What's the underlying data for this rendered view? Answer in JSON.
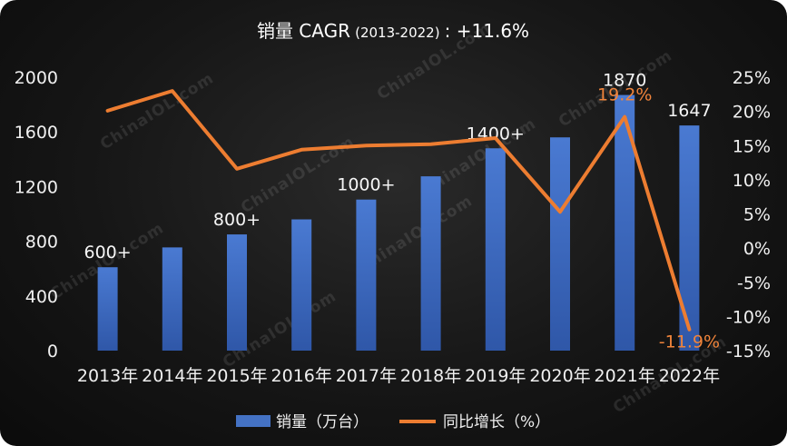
{
  "chart_data": {
    "type": "bar",
    "title": "销量 CAGR",
    "title_period": "(2013-2022)",
    "title_value": ": +11.6%",
    "categories": [
      "2013年",
      "2014年",
      "2015年",
      "2016年",
      "2017年",
      "2018年",
      "2019年",
      "2020年",
      "2021年",
      "2022年"
    ],
    "series": [
      {
        "name": "销量（万台）",
        "kind": "bar",
        "axis": "left",
        "color": "#4472c4",
        "values": [
          610,
          755,
          850,
          960,
          1105,
          1275,
          1480,
          1560,
          1870,
          1647
        ]
      },
      {
        "name": "同比增长（%）",
        "kind": "line",
        "axis": "right",
        "color": "#ed7d31",
        "values": [
          20.1,
          23.0,
          11.6,
          14.4,
          15.0,
          15.2,
          16.1,
          5.3,
          19.2,
          -11.9
        ]
      }
    ],
    "y_left": {
      "min": 0,
      "max": 2000,
      "ticks": [
        0,
        400,
        800,
        1200,
        1600,
        2000
      ],
      "tick_labels": [
        "0",
        "400",
        "800",
        "1200",
        "1600",
        "2000"
      ]
    },
    "y_right": {
      "min": -15,
      "max": 25,
      "ticks": [
        -15,
        -10,
        -5,
        0,
        5,
        10,
        15,
        20,
        25
      ],
      "tick_labels": [
        "-15%",
        "-10%",
        "-5%",
        "0%",
        "5%",
        "10%",
        "15%",
        "20%",
        "25%"
      ]
    },
    "bar_annotations": [
      {
        "index": 0,
        "text": "600+"
      },
      {
        "index": 2,
        "text": "800+"
      },
      {
        "index": 4,
        "text": "1000+"
      },
      {
        "index": 6,
        "text": "1400+"
      },
      {
        "index": 8,
        "text": "1870"
      },
      {
        "index": 9,
        "text": "1647"
      }
    ],
    "line_annotations": [
      {
        "index": 8,
        "text": "19.2%"
      },
      {
        "index": 9,
        "text": "-11.9%"
      }
    ],
    "legend": [
      "销量（万台）",
      "同比增长（%）"
    ],
    "legend_position": "bottom-center",
    "grid": false
  },
  "watermark": "ChinaIOL.com"
}
